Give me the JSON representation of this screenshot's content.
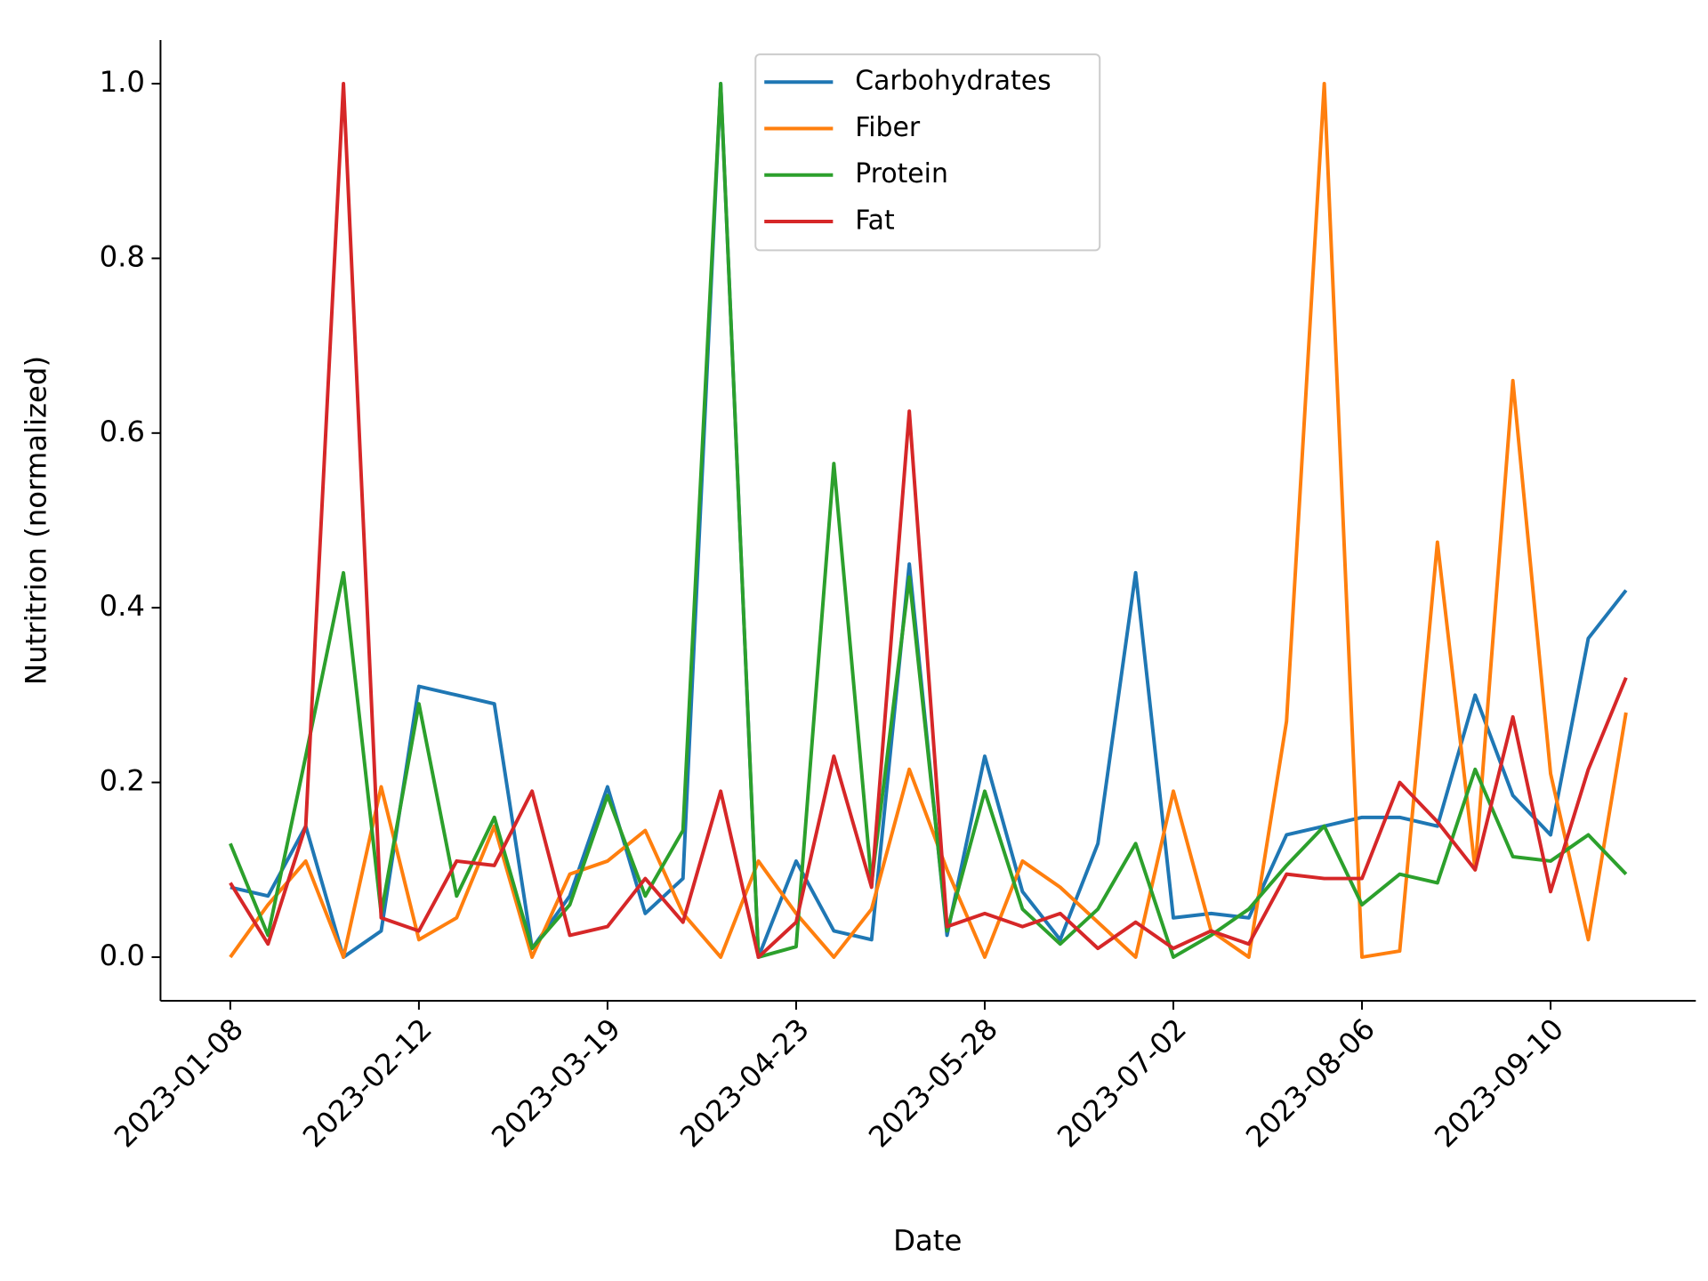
{
  "chart_data": {
    "type": "line",
    "x_label": "Date",
    "y_label": "Nutritrion (normalized)",
    "x": [
      "2023-01-08",
      "2023-01-15",
      "2023-01-22",
      "2023-01-29",
      "2023-02-05",
      "2023-02-12",
      "2023-02-19",
      "2023-02-26",
      "2023-03-05",
      "2023-03-12",
      "2023-03-19",
      "2023-03-26",
      "2023-04-02",
      "2023-04-09",
      "2023-04-16",
      "2023-04-23",
      "2023-04-30",
      "2023-05-07",
      "2023-05-14",
      "2023-05-21",
      "2023-05-28",
      "2023-06-04",
      "2023-06-11",
      "2023-06-18",
      "2023-06-25",
      "2023-07-02",
      "2023-07-09",
      "2023-07-16",
      "2023-07-23",
      "2023-07-30",
      "2023-08-06",
      "2023-08-13",
      "2023-08-20",
      "2023-08-27",
      "2023-09-03",
      "2023-09-10",
      "2023-09-17",
      "2023-09-24"
    ],
    "xticks": [
      "2023-01-08",
      "2023-02-12",
      "2023-03-19",
      "2023-04-23",
      "2023-05-28",
      "2023-07-02",
      "2023-08-06",
      "2023-09-10"
    ],
    "ylim": [
      -0.05,
      1.05
    ],
    "yticks": [
      {
        "value": 0,
        "label": "0.0"
      },
      0.2,
      0.4,
      0.6,
      0.8,
      {
        "value": 1,
        "label": "1.0"
      }
    ],
    "legend": "upper center",
    "series": [
      {
        "name": "Carbohydrates",
        "color": "#1f77b4",
        "values": [
          0.08,
          0.07,
          0.15,
          0.0,
          0.03,
          0.31,
          0.3,
          0.29,
          0.01,
          0.07,
          0.195,
          0.05,
          0.09,
          1.0,
          0.0,
          0.11,
          0.03,
          0.02,
          0.45,
          0.025,
          0.23,
          0.075,
          0.02,
          0.13,
          0.44,
          0.045,
          0.05,
          0.045,
          0.14,
          0.15,
          0.16,
          0.16,
          0.15,
          0.3,
          0.185,
          0.14,
          0.365,
          0.42
        ]
      },
      {
        "name": "Fiber",
        "color": "#ff7f0e",
        "values": [
          0.0,
          0.06,
          0.11,
          0.0,
          0.195,
          0.02,
          0.045,
          0.15,
          0.0,
          0.095,
          0.11,
          0.145,
          0.05,
          0.0,
          0.11,
          0.05,
          0.0,
          0.055,
          0.215,
          0.1,
          0.0,
          0.11,
          0.08,
          0.04,
          0.0,
          0.19,
          0.03,
          0.0,
          0.27,
          1.0,
          0.0,
          0.007,
          0.475,
          0.1,
          0.66,
          0.21,
          0.02,
          0.28
        ]
      },
      {
        "name": "Protein",
        "color": "#2ca02c",
        "values": [
          0.13,
          0.025,
          0.23,
          0.44,
          0.05,
          0.29,
          0.07,
          0.16,
          0.01,
          0.06,
          0.185,
          0.07,
          0.145,
          1.0,
          0.0,
          0.012,
          0.565,
          0.085,
          0.435,
          0.03,
          0.19,
          0.055,
          0.015,
          0.055,
          0.13,
          0.0,
          0.025,
          0.055,
          0.105,
          0.15,
          0.06,
          0.095,
          0.085,
          0.215,
          0.115,
          0.11,
          0.14,
          0.095
        ]
      },
      {
        "name": "Fat",
        "color": "#d62728",
        "values": [
          0.085,
          0.015,
          0.15,
          1.0,
          0.045,
          0.03,
          0.11,
          0.105,
          0.19,
          0.025,
          0.035,
          0.09,
          0.04,
          0.19,
          0.0,
          0.04,
          0.23,
          0.08,
          0.625,
          0.035,
          0.05,
          0.035,
          0.05,
          0.01,
          0.04,
          0.01,
          0.03,
          0.015,
          0.095,
          0.09,
          0.09,
          0.2,
          0.155,
          0.1,
          0.275,
          0.075,
          0.215,
          0.32
        ]
      }
    ]
  }
}
